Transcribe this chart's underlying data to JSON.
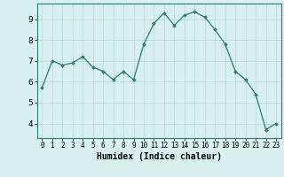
{
  "x": [
    0,
    1,
    2,
    3,
    4,
    5,
    6,
    7,
    8,
    9,
    10,
    11,
    12,
    13,
    14,
    15,
    16,
    17,
    18,
    19,
    20,
    21,
    22,
    23
  ],
  "y": [
    5.7,
    7.0,
    6.8,
    6.9,
    7.2,
    6.7,
    6.5,
    6.1,
    6.5,
    6.1,
    7.8,
    8.8,
    9.3,
    8.7,
    9.2,
    9.35,
    9.1,
    8.5,
    7.8,
    6.5,
    6.1,
    5.4,
    3.7,
    4.0
  ],
  "xlabel": "Humidex (Indice chaleur)",
  "xlim": [
    -0.5,
    23.5
  ],
  "ylim": [
    3.3,
    9.75
  ],
  "yticks": [
    4,
    5,
    6,
    7,
    8,
    9
  ],
  "xticks": [
    0,
    1,
    2,
    3,
    4,
    5,
    6,
    7,
    8,
    9,
    10,
    11,
    12,
    13,
    14,
    15,
    16,
    17,
    18,
    19,
    20,
    21,
    22,
    23
  ],
  "line_color": "#2d7d6e",
  "marker": "D",
  "marker_size": 1.8,
  "bg_color": "#d8f0f0",
  "grid_color": "#b8d8d8",
  "tick_fontsize": 5.5,
  "xlabel_fontsize": 7.0
}
